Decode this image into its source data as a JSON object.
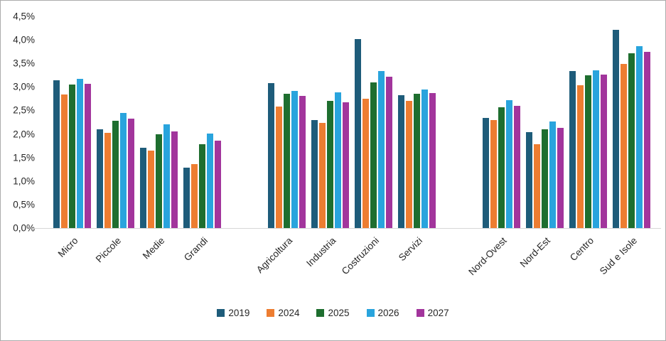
{
  "chart_data": {
    "type": "bar",
    "title": "",
    "xlabel": "",
    "ylabel": "",
    "ylim": [
      0,
      4.5
    ],
    "grid": false,
    "legend_position": "bottom",
    "value_unit": "%",
    "ytick_labels": [
      "4,5%",
      "4,0%",
      "3,5%",
      "3,0%",
      "2,5%",
      "2,0%",
      "1,5%",
      "1,0%",
      "0,5%",
      "0,0%"
    ],
    "series": [
      "2019",
      "2024",
      "2025",
      "2026",
      "2027"
    ],
    "colors": [
      "#1e5c7a",
      "#ed7d31",
      "#1e6e2f",
      "#29a4dd",
      "#a2359c"
    ],
    "clusters": [
      {
        "groups": [
          {
            "label": "Micro",
            "values": [
              3.14,
              2.84,
              3.05,
              3.17,
              3.07
            ]
          },
          {
            "label": "Piccole",
            "values": [
              2.1,
              2.02,
              2.28,
              2.45,
              2.32
            ]
          },
          {
            "label": "Medie",
            "values": [
              1.7,
              1.64,
              2.0,
              2.21,
              2.06
            ]
          },
          {
            "label": "Grandi",
            "values": [
              1.29,
              1.36,
              1.78,
              2.01,
              1.86
            ]
          }
        ]
      },
      {
        "groups": [
          {
            "label": "Agricoltura",
            "values": [
              3.08,
              2.58,
              2.86,
              2.91,
              2.81
            ]
          },
          {
            "label": "Industria",
            "values": [
              2.29,
              2.24,
              2.7,
              2.89,
              2.67
            ]
          },
          {
            "label": "Costruzioni",
            "values": [
              4.01,
              2.75,
              3.1,
              3.34,
              3.21
            ]
          },
          {
            "label": "Servizi",
            "values": [
              2.82,
              2.71,
              2.85,
              2.95,
              2.87
            ]
          }
        ]
      },
      {
        "groups": [
          {
            "label": "Nord-Ovest",
            "values": [
              2.34,
              2.3,
              2.57,
              2.72,
              2.6
            ]
          },
          {
            "label": "Nord-Est",
            "values": [
              2.04,
              1.79,
              2.1,
              2.27,
              2.13
            ]
          },
          {
            "label": "Centro",
            "values": [
              3.34,
              3.03,
              3.24,
              3.36,
              3.26
            ]
          },
          {
            "label": "Sud e Isole",
            "values": [
              4.22,
              3.49,
              3.72,
              3.86,
              3.74
            ]
          }
        ]
      }
    ]
  }
}
